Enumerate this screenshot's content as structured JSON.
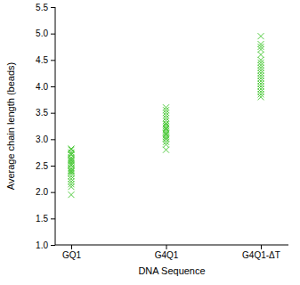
{
  "chart_data": {
    "type": "scatter",
    "marker": "x",
    "color": "#55cc44",
    "x_label": "DNA Sequence",
    "y_label": "Average chain length (beads)",
    "categories": [
      "GQ1",
      "G4Q1",
      "G4Q1-ΔT"
    ],
    "values": [
      [
        1.95,
        2.1,
        2.15,
        2.2,
        2.25,
        2.3,
        2.35,
        2.38,
        2.4,
        2.42,
        2.45,
        2.5,
        2.52,
        2.55,
        2.58,
        2.6,
        2.62,
        2.65,
        2.7,
        2.72,
        2.75,
        2.8,
        2.82
      ],
      [
        2.8,
        2.9,
        2.95,
        3.0,
        3.02,
        3.05,
        3.08,
        3.1,
        3.12,
        3.15,
        3.18,
        3.2,
        3.22,
        3.25,
        3.28,
        3.3,
        3.35,
        3.4,
        3.45,
        3.5,
        3.55,
        3.6
      ],
      [
        3.8,
        3.85,
        3.9,
        3.95,
        4.0,
        4.05,
        4.1,
        4.15,
        4.2,
        4.25,
        4.3,
        4.35,
        4.4,
        4.45,
        4.5,
        4.6,
        4.7,
        4.75,
        4.8,
        4.95
      ]
    ],
    "ylim": [
      1.0,
      5.5
    ],
    "yticks": [
      {
        "value": 1.0,
        "label": "1.0"
      },
      1.5,
      {
        "value": 2.0,
        "label": "2.0"
      },
      2.5,
      {
        "value": 3.0,
        "label": "3.0"
      },
      3.5,
      {
        "value": 4.0,
        "label": "4.0"
      },
      4.5,
      {
        "value": 5.0,
        "label": "5.0"
      },
      5.5
    ],
    "grid": false
  }
}
